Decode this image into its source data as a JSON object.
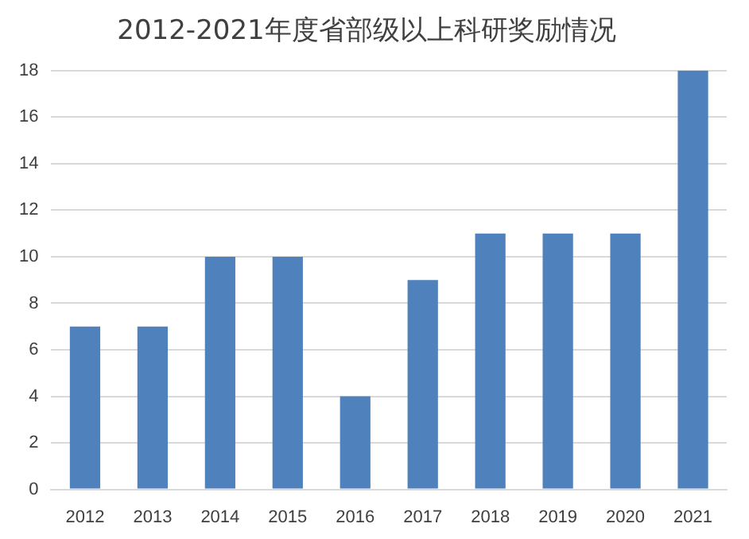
{
  "chart_data": {
    "type": "bar",
    "title": "2012-2021年度省部级以上科研奖励情况",
    "categories": [
      "2012",
      "2013",
      "2014",
      "2015",
      "2016",
      "2017",
      "2018",
      "2019",
      "2020",
      "2021"
    ],
    "values": [
      7,
      7,
      10,
      10,
      4,
      9,
      11,
      11,
      11,
      18
    ],
    "color": "#4f81bd",
    "ylim": [
      0,
      18
    ],
    "yticks": [
      0,
      2,
      4,
      6,
      8,
      10,
      12,
      14,
      16,
      18
    ],
    "grid": "y"
  }
}
